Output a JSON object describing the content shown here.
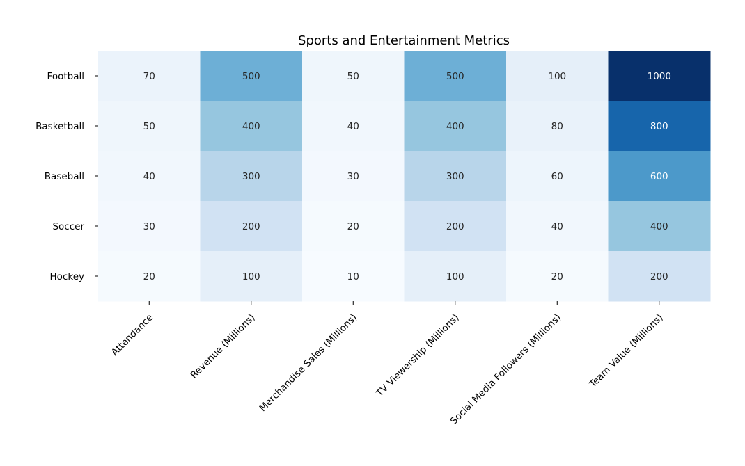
{
  "chart_data": {
    "type": "heatmap",
    "title": "Sports and Entertainment Metrics",
    "rows": [
      "Football",
      "Basketball",
      "Baseball",
      "Soccer",
      "Hockey"
    ],
    "columns": [
      "Attendance",
      "Revenue (Millions)",
      "Merchandise Sales (Millions)",
      "TV Viewership (Millions)",
      "Social Media Followers (Millions)",
      "Team Value (Millions)"
    ],
    "values": [
      [
        70,
        500,
        50,
        500,
        100,
        1000
      ],
      [
        50,
        400,
        40,
        400,
        80,
        800
      ],
      [
        40,
        300,
        30,
        300,
        60,
        600
      ],
      [
        30,
        200,
        20,
        200,
        40,
        400
      ],
      [
        20,
        100,
        10,
        100,
        20,
        200
      ]
    ],
    "colormap": "Blues",
    "vmin": 10,
    "vmax": 1000,
    "annotated": true,
    "colorbar": false
  }
}
